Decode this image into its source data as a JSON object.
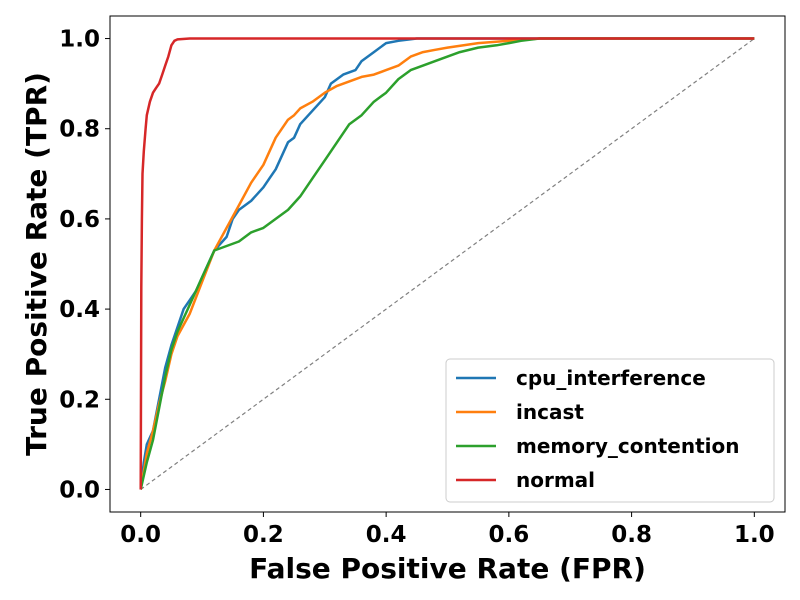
{
  "chart_data": {
    "type": "line",
    "title": "",
    "xlabel": "False Positive Rate (FPR)",
    "ylabel": "True Positive Rate (TPR)",
    "xlim": [
      -0.05,
      1.05
    ],
    "ylim": [
      -0.05,
      1.05
    ],
    "xticks": [
      0.0,
      0.2,
      0.4,
      0.6,
      0.8,
      1.0
    ],
    "yticks": [
      0.0,
      0.2,
      0.4,
      0.6,
      0.8,
      1.0
    ],
    "tick_labels": [
      "0.0",
      "0.2",
      "0.4",
      "0.6",
      "0.8",
      "1.0"
    ],
    "grid": false,
    "legend_position": "bottom-right",
    "diagonal_reference": {
      "x": [
        0,
        1
      ],
      "y": [
        0,
        1
      ],
      "color": "#808080",
      "style": "dashed"
    },
    "series": [
      {
        "name": "cpu_interference",
        "color": "#1f77b4",
        "x": [
          0,
          0.005,
          0.01,
          0.02,
          0.03,
          0.04,
          0.05,
          0.06,
          0.07,
          0.08,
          0.09,
          0.1,
          0.12,
          0.14,
          0.15,
          0.16,
          0.18,
          0.2,
          0.21,
          0.22,
          0.24,
          0.25,
          0.26,
          0.28,
          0.3,
          0.31,
          0.33,
          0.35,
          0.36,
          0.38,
          0.4,
          0.42,
          0.45,
          0.5,
          0.55,
          0.6,
          0.7,
          0.8,
          0.9,
          1.0
        ],
        "y": [
          0,
          0.06,
          0.1,
          0.13,
          0.2,
          0.27,
          0.32,
          0.36,
          0.4,
          0.42,
          0.44,
          0.47,
          0.53,
          0.56,
          0.6,
          0.62,
          0.64,
          0.67,
          0.69,
          0.71,
          0.77,
          0.78,
          0.81,
          0.84,
          0.87,
          0.9,
          0.92,
          0.93,
          0.95,
          0.97,
          0.99,
          0.995,
          1.0,
          1.0,
          1.0,
          1.0,
          1.0,
          1.0,
          1.0,
          1.0
        ]
      },
      {
        "name": "incast",
        "color": "#ff7f0e",
        "x": [
          0,
          0.005,
          0.01,
          0.02,
          0.03,
          0.04,
          0.05,
          0.06,
          0.08,
          0.1,
          0.12,
          0.14,
          0.16,
          0.18,
          0.2,
          0.22,
          0.24,
          0.25,
          0.26,
          0.28,
          0.3,
          0.32,
          0.34,
          0.36,
          0.38,
          0.4,
          0.42,
          0.44,
          0.46,
          0.48,
          0.5,
          0.55,
          0.6,
          0.65,
          0.7,
          0.8,
          0.9,
          1.0
        ],
        "y": [
          0,
          0.04,
          0.08,
          0.13,
          0.19,
          0.24,
          0.3,
          0.34,
          0.39,
          0.46,
          0.53,
          0.58,
          0.63,
          0.68,
          0.72,
          0.78,
          0.82,
          0.83,
          0.845,
          0.86,
          0.88,
          0.895,
          0.905,
          0.915,
          0.92,
          0.93,
          0.94,
          0.96,
          0.97,
          0.975,
          0.98,
          0.99,
          0.995,
          1.0,
          1.0,
          1.0,
          1.0,
          1.0
        ]
      },
      {
        "name": "memory_contention",
        "color": "#2ca02c",
        "x": [
          0,
          0.01,
          0.02,
          0.03,
          0.04,
          0.05,
          0.06,
          0.08,
          0.1,
          0.12,
          0.14,
          0.16,
          0.18,
          0.2,
          0.22,
          0.24,
          0.26,
          0.28,
          0.3,
          0.32,
          0.34,
          0.36,
          0.38,
          0.4,
          0.42,
          0.44,
          0.46,
          0.48,
          0.5,
          0.52,
          0.55,
          0.58,
          0.6,
          0.62,
          0.65,
          0.67,
          0.8,
          1.0
        ],
        "y": [
          0,
          0.06,
          0.11,
          0.18,
          0.25,
          0.31,
          0.35,
          0.41,
          0.47,
          0.53,
          0.54,
          0.55,
          0.57,
          0.58,
          0.6,
          0.62,
          0.65,
          0.69,
          0.73,
          0.77,
          0.81,
          0.83,
          0.86,
          0.88,
          0.91,
          0.93,
          0.94,
          0.95,
          0.96,
          0.97,
          0.98,
          0.985,
          0.99,
          0.995,
          1.0,
          1.0,
          1.0,
          1.0
        ]
      },
      {
        "name": "normal",
        "color": "#d62728",
        "x": [
          0,
          0.001,
          0.002,
          0.003,
          0.005,
          0.008,
          0.01,
          0.015,
          0.02,
          0.025,
          0.03,
          0.035,
          0.04,
          0.045,
          0.05,
          0.055,
          0.06,
          0.08,
          0.1,
          0.2,
          0.4,
          0.6,
          0.8,
          1.0
        ],
        "y": [
          0,
          0.45,
          0.6,
          0.7,
          0.75,
          0.8,
          0.83,
          0.86,
          0.88,
          0.89,
          0.9,
          0.92,
          0.94,
          0.96,
          0.985,
          0.995,
          0.998,
          1.0,
          1.0,
          1.0,
          1.0,
          1.0,
          1.0,
          1.0
        ]
      }
    ]
  }
}
